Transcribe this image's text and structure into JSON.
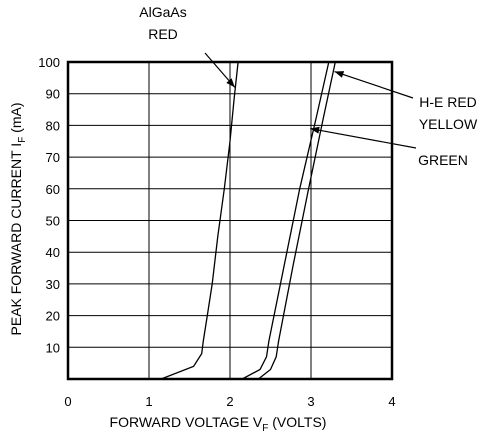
{
  "chart_data": {
    "type": "line",
    "xlabel_prefix": "FORWARD VOLTAGE V",
    "xlabel_sub": "F",
    "xlabel_suffix": " (VOLTS)",
    "ylabel_prefix": "PEAK FORWARD CURRENT I",
    "ylabel_sub": "F",
    "ylabel_suffix": " (mA)",
    "xlim": [
      0,
      4
    ],
    "ylim": [
      0,
      100
    ],
    "x_ticks": [
      "0",
      "1",
      "2",
      "3",
      "4"
    ],
    "y_ticks": [
      "10",
      "20",
      "30",
      "40",
      "50",
      "60",
      "70",
      "80",
      "90",
      "100"
    ],
    "grid": true,
    "series": [
      {
        "name_lines": [
          "AlGaAs",
          "RED"
        ],
        "x": [
          1.15,
          1.55,
          1.65,
          1.67,
          1.72,
          1.78,
          1.85,
          1.93,
          2.0,
          2.05,
          2.1
        ],
        "y": [
          0,
          4,
          8,
          12,
          20,
          30,
          45,
          60,
          75,
          88,
          100
        ]
      },
      {
        "name_lines": [
          "H-E RED",
          "YELLOW"
        ],
        "x": [
          2.35,
          2.5,
          2.57,
          2.6,
          2.78,
          2.97,
          3.15,
          3.3
        ],
        "y": [
          0,
          3,
          7,
          12,
          36,
          60,
          82,
          100
        ]
      },
      {
        "name_lines": [
          "GREEN"
        ],
        "x": [
          2.15,
          2.37,
          2.45,
          2.48,
          2.67,
          2.86,
          3.06,
          3.22
        ],
        "y": [
          0,
          3,
          7,
          12,
          36,
          60,
          82,
          100
        ]
      }
    ]
  }
}
